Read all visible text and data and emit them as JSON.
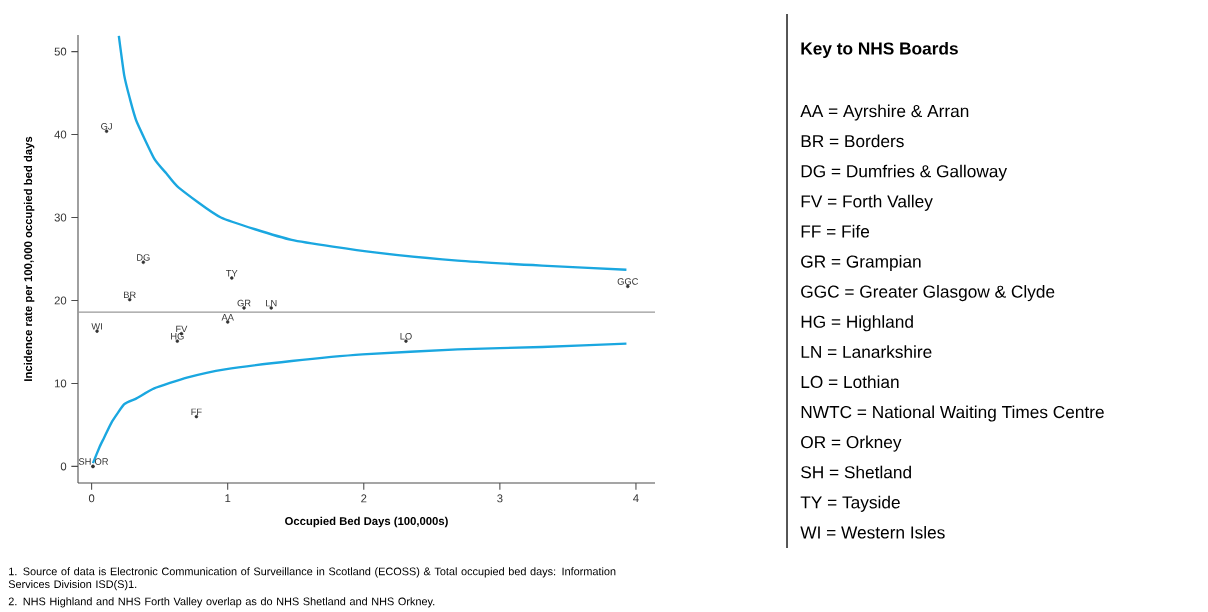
{
  "chart_data": [
    {
      "type": "scatter",
      "xlabel": "Occupied Bed Days (100,000s)",
      "ylabel": "Incidence rate per 100,000 occupied bed days",
      "xlim": [
        -0.1,
        4.14
      ],
      "ylim": [
        -2,
        52
      ],
      "xticks": [
        0,
        1,
        2,
        3,
        4
      ],
      "yticks": [
        0,
        10,
        20,
        30,
        40,
        50
      ],
      "ref_lines": [
        {
          "axis": "y",
          "value": 18.6,
          "color": "#999999"
        }
      ],
      "annotations": [
        "1.  Source of data is Electronic Communication of Surveillance in Scotland (ECOSS) & Total occupied bed days: Information Services Division ISD(S)1.",
        "2.  NHS Highland and NHS Forth Valley overlap as do NHS Shetland and NHS Orkney."
      ],
      "series": [
        {
          "type": "scatter",
          "marker": "circle",
          "color": "#333333",
          "x": [
            0.11,
            0.38,
            0.28,
            1.03,
            3.94,
            1.12,
            1.32,
            1.0,
            0.04,
            0.66,
            0.63,
            2.31,
            0.77,
            0.01,
            0.01
          ],
          "values": [
            40.4,
            24.6,
            20.1,
            22.7,
            21.7,
            19.1,
            19.1,
            17.4,
            16.3,
            16.0,
            15.1,
            15.1,
            6.0,
            0,
            0
          ],
          "value_labels": [
            "GJ",
            "DG",
            "BR",
            "TY",
            "GGC",
            "GR",
            "LN",
            "AA",
            "WI",
            "FV",
            "HG",
            "LO",
            "FF",
            "SH",
            "OR"
          ]
        },
        {
          "type": "line",
          "color": "#1aa7e0",
          "x": [
            0.2,
            0.24,
            0.28,
            0.33,
            0.46,
            0.55,
            0.64,
            0.95,
            1.47,
            2.08,
            2.69,
            3.31,
            3.93
          ],
          "values": [
            51.9,
            47.1,
            44.4,
            41.6,
            37.1,
            35.3,
            33.6,
            30.0,
            27.3,
            25.8,
            24.8,
            24.2,
            23.7
          ]
        },
        {
          "type": "line",
          "color": "#1aa7e0",
          "x": [
            0.01,
            0.06,
            0.09,
            0.15,
            0.24,
            0.33,
            0.46,
            0.7,
            0.98,
            1.47,
            1.99,
            2.69,
            3.31,
            3.93
          ],
          "values": [
            0.4,
            2.4,
            3.4,
            5.4,
            7.5,
            8.2,
            9.4,
            10.7,
            11.7,
            12.7,
            13.5,
            14.1,
            14.4,
            14.8
          ]
        }
      ]
    },
    {
      "type": "other",
      "title": "Key to NHS Boards",
      "annotations": [
        "AA = Ayrshire & Arran",
        "BR = Borders",
        "DG = Dumfries & Galloway",
        "FV = Forth Valley",
        "FF = Fife",
        "GR = Grampian",
        "GGC = Greater Glasgow & Clyde",
        "HG = Highland",
        "LN = Lanarkshire",
        "LO = Lothian",
        "NWTC = National Waiting Times Centre",
        "OR = Orkney",
        "SH = Shetland",
        "TY = Tayside",
        "WI = Western Isles"
      ]
    }
  ]
}
